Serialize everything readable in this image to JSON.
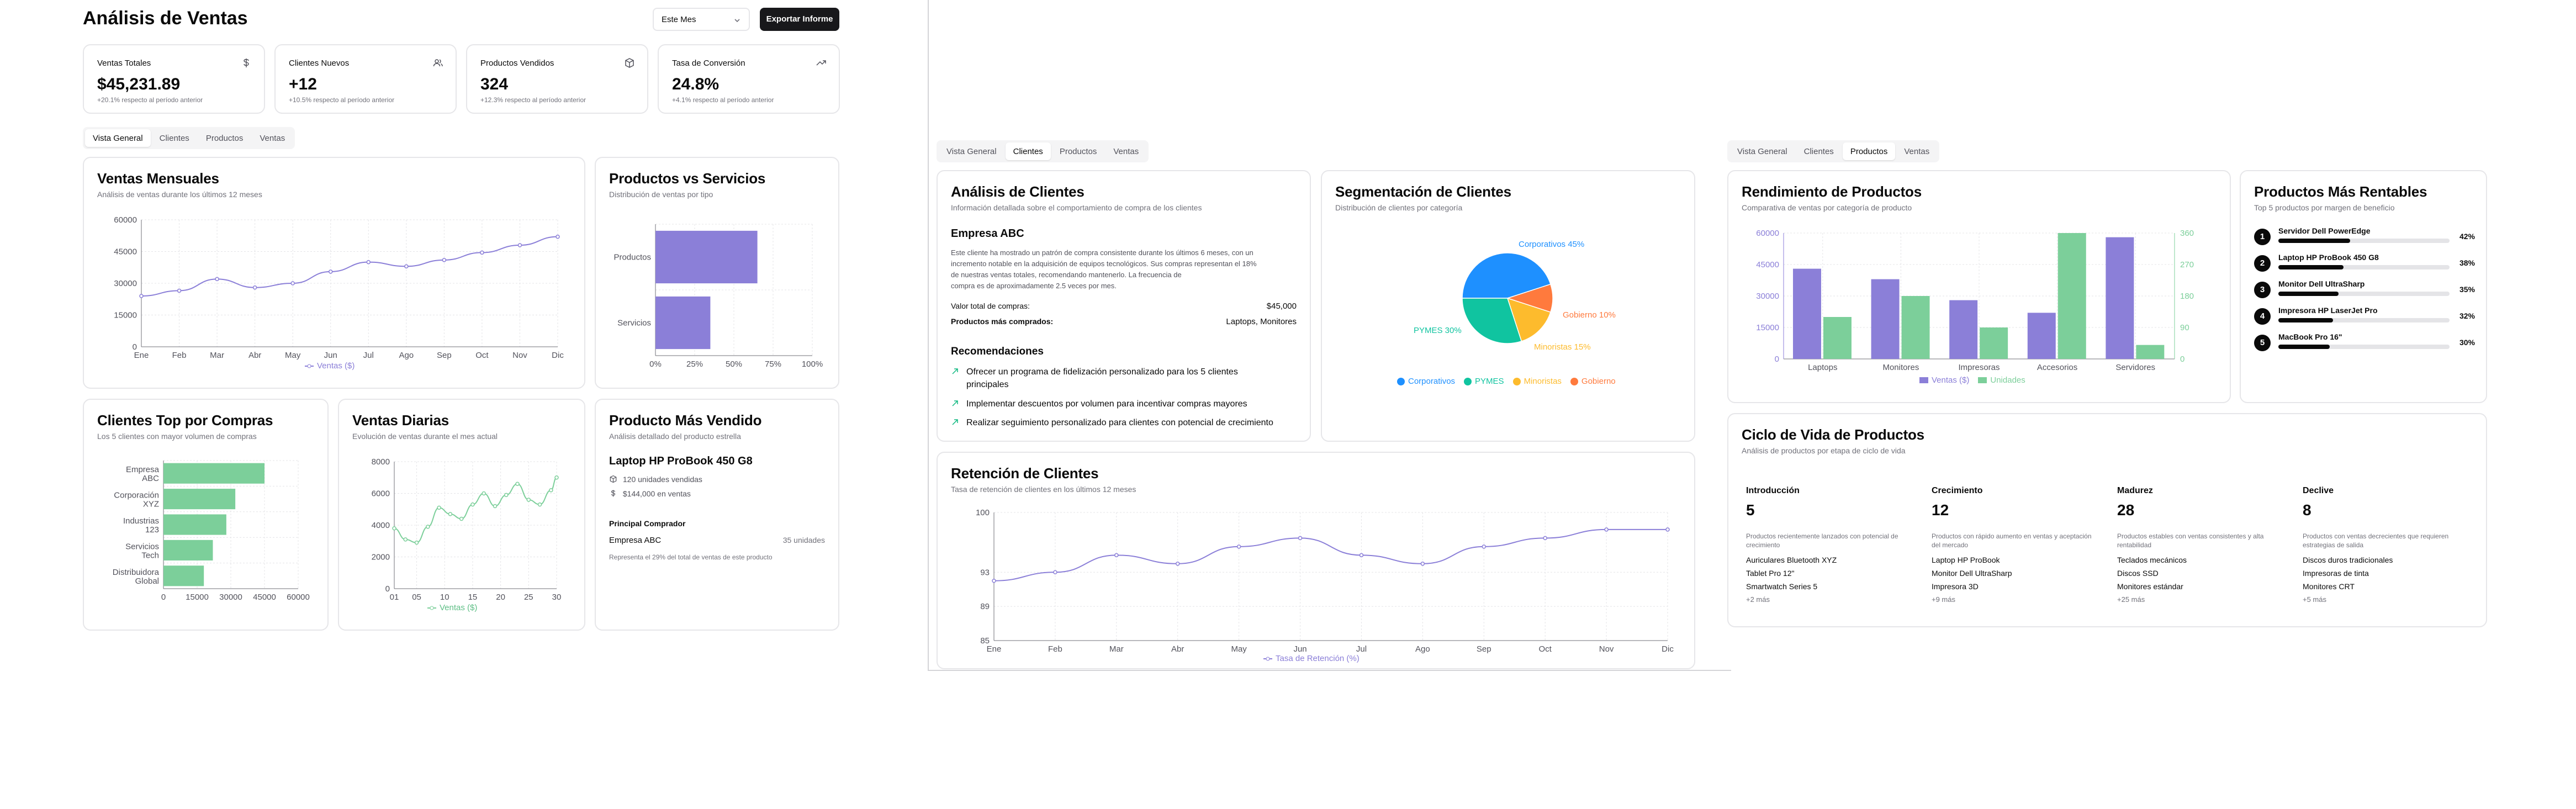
{
  "header": {
    "title": "Análisis de Ventas",
    "period": "Este Mes",
    "export": "Exportar Informe"
  },
  "kpis": [
    {
      "title": "Ventas Totales",
      "value": "$45,231.89",
      "note": "+20.1% respecto al período anterior",
      "icon": "dollar-icon"
    },
    {
      "title": "Clientes Nuevos",
      "value": "+12",
      "note": "+10.5% respecto al período anterior",
      "icon": "users-icon"
    },
    {
      "title": "Productos Vendidos",
      "value": "324",
      "note": "+12.3% respecto al período anterior",
      "icon": "package-icon"
    },
    {
      "title": "Tasa de Conversión",
      "value": "24.8%",
      "note": "+4.1% respecto al período anterior",
      "icon": "trending-up-icon"
    }
  ],
  "tabs": [
    "Vista General",
    "Clientes",
    "Productos",
    "Ventas"
  ],
  "monthly": {
    "title": "Ventas Mensuales",
    "subtitle": "Análisis de ventas durante los últimos 12 meses",
    "legend": "Ventas ($)",
    "chart_data": {
      "type": "line",
      "categories": [
        "Ene",
        "Feb",
        "Mar",
        "Abr",
        "May",
        "Jun",
        "Jul",
        "Ago",
        "Sep",
        "Oct",
        "Nov",
        "Dic"
      ],
      "values": [
        24000,
        26500,
        32000,
        28000,
        30000,
        35500,
        40000,
        38000,
        41000,
        44500,
        48000,
        52000
      ],
      "yticks": [
        "0",
        "15000",
        "30000",
        "45000",
        "60000"
      ],
      "ylim": [
        0,
        60000
      ]
    }
  },
  "pvs": {
    "title": "Productos vs Servicios",
    "subtitle": "Distribución de ventas por tipo",
    "chart_data": {
      "type": "bar",
      "orientation": "horizontal",
      "categories": [
        "Productos",
        "Servicios"
      ],
      "values": [
        65,
        35
      ],
      "xticks": [
        "0%",
        "25%",
        "50%",
        "75%",
        "100%"
      ],
      "xlim": [
        0,
        100
      ]
    }
  },
  "topclients": {
    "title": "Clientes Top por Compras",
    "subtitle": "Los 5 clientes con mayor volumen de compras",
    "chart_data": {
      "type": "bar",
      "orientation": "horizontal",
      "categories": [
        [
          "Empresa",
          "ABC"
        ],
        [
          "Corporación",
          "XYZ"
        ],
        [
          "Industrias",
          "123"
        ],
        [
          "Servicios",
          "Tech"
        ],
        [
          "Distribuidora",
          "Global"
        ]
      ],
      "values": [
        45000,
        32000,
        28000,
        22000,
        18000
      ],
      "xticks": [
        "0",
        "15000",
        "30000",
        "45000",
        "60000"
      ],
      "xlim": [
        0,
        60000
      ]
    }
  },
  "daily": {
    "title": "Ventas Diarias",
    "subtitle": "Evolución de ventas durante el mes actual",
    "legend": "Ventas ($)",
    "chart_data": {
      "type": "line",
      "x": [
        1,
        3,
        5,
        7,
        9,
        11,
        13,
        15,
        17,
        19,
        21,
        23,
        25,
        27,
        29,
        30
      ],
      "values": [
        3800,
        3100,
        2900,
        3900,
        5100,
        4700,
        4400,
        5300,
        6000,
        5200,
        5900,
        6600,
        5600,
        5300,
        6200,
        7000
      ],
      "xticks": [
        "01",
        "05",
        "10",
        "15",
        "20",
        "25",
        "30"
      ],
      "yticks": [
        "0",
        "2000",
        "4000",
        "6000",
        "8000"
      ],
      "ylim": [
        0,
        8000
      ]
    }
  },
  "topproduct": {
    "title": "Producto Más Vendido",
    "subtitle": "Análisis detallado del producto estrella",
    "name": "Laptop HP ProBook 450 G8",
    "units": "120 unidades vendidas",
    "revenue": "$144,000 en ventas",
    "buyer_label": "Principal Comprador",
    "buyer": "Empresa ABC",
    "buyer_units": "35 unidades",
    "buyer_note": "Representa el 29% del total de ventas de este producto"
  },
  "clientes": {
    "tabs": [
      "Vista General",
      "Clientes",
      "Productos",
      "Ventas"
    ],
    "analysis": {
      "title": "Análisis de Clientes",
      "subtitle": "Información detallada sobre el comportamiento de compra de los clientes",
      "client": "Empresa ABC",
      "paragraph": [
        "Este cliente ha mostrado un patrón de compra consistente durante los últimos 6 meses, con un",
        "incremento notable en la adquisición de equipos tecnológicos. Sus compras representan el 18%",
        "de nuestras ventas totales, recomendando mantenerlo. La frecuencia de",
        "compra es de aproximadamente 2.5 veces por mes."
      ],
      "total_label": "Valor total de compras:",
      "total_value": "$45,000",
      "products_label": "Productos más comprados:",
      "products_value": "Laptops, Monitores",
      "rec_title": "Recomendaciones",
      "recs": [
        [
          "Ofrecer un programa de fidelización personalizado para los 5 clientes",
          "principales"
        ],
        [
          "Implementar descuentos por volumen para incentivar compras mayores"
        ],
        [
          "Realizar seguimiento personalizado para clientes con potencial de crecimiento"
        ]
      ]
    },
    "segment": {
      "title": "Segmentación de Clientes",
      "subtitle": "Distribución de clientes por categoría",
      "labels": [
        "Corporativos 45%",
        "Gobierno 10%",
        "Minoristas 15%",
        "PYMES 30%"
      ],
      "chart_data": {
        "type": "pie",
        "categories": [
          "Corporativos",
          "PYMES",
          "Minoristas",
          "Gobierno"
        ],
        "values": [
          45,
          30,
          15,
          10
        ]
      },
      "colors": {
        "Corporativos": "#1e90ff",
        "PYMES": "#10c4a0",
        "Minoristas": "#fdbb2d",
        "Gobierno": "#ff7a3d"
      }
    },
    "retention": {
      "title": "Retención de Clientes",
      "subtitle": "Tasa de retención de clientes en los últimos 12 meses",
      "legend": "Tasa de Retención (%)",
      "chart_data": {
        "type": "line",
        "categories": [
          "Ene",
          "Feb",
          "Mar",
          "Abr",
          "May",
          "Jun",
          "Jul",
          "Ago",
          "Sep",
          "Oct",
          "Nov",
          "Dic"
        ],
        "values": [
          92,
          93,
          95,
          94,
          96,
          97,
          95,
          94,
          96,
          97,
          98,
          98
        ],
        "yticks": [
          "85",
          "89",
          "93",
          "100"
        ],
        "ylim": [
          85,
          100
        ]
      }
    }
  },
  "productos": {
    "tabs": [
      "Vista General",
      "Clientes",
      "Productos",
      "Ventas"
    ],
    "performance": {
      "title": "Rendimiento de Productos",
      "subtitle": "Comparativa de ventas por categoría de producto",
      "legend": [
        "Ventas ($)",
        "Unidades"
      ],
      "chart_data": {
        "type": "bar",
        "categories": [
          "Laptops",
          "Monitores",
          "Impresoras",
          "Accesorios",
          "Servidores"
        ],
        "series": [
          {
            "name": "Ventas ($)",
            "values": [
              43000,
              38000,
              28000,
              22000,
              58000
            ]
          },
          {
            "name": "Unidades",
            "values": [
              120,
              180,
              90,
              360,
              40
            ]
          }
        ],
        "yticks_left": [
          "0",
          "15000",
          "30000",
          "45000",
          "60000"
        ],
        "yticks_right": [
          "0",
          "90",
          "180",
          "270",
          "360"
        ],
        "ylim_left": [
          0,
          60000
        ],
        "ylim_right": [
          0,
          360
        ]
      }
    },
    "profitable": {
      "title": "Productos Más Rentables",
      "subtitle": "Top 5 productos por margen de beneficio",
      "items": [
        {
          "rank": "1",
          "name": "Servidor Dell PowerEdge",
          "pct": "42%",
          "value": 0.42
        },
        {
          "rank": "2",
          "name": "Laptop HP ProBook 450 G8",
          "pct": "38%",
          "value": 0.38
        },
        {
          "rank": "3",
          "name": "Monitor Dell UltraSharp",
          "pct": "35%",
          "value": 0.35
        },
        {
          "rank": "4",
          "name": "Impresora HP LaserJet Pro",
          "pct": "32%",
          "value": 0.32
        },
        {
          "rank": "5",
          "name": "MacBook Pro 16\"",
          "pct": "30%",
          "value": 0.3
        }
      ]
    },
    "lifecycle": {
      "title": "Ciclo de Vida de Productos",
      "subtitle": "Análisis de productos por etapa de ciclo de vida",
      "stages": [
        {
          "name": "Introducción",
          "count": "5",
          "desc": [
            "Productos recientemente lanzados con potencial de",
            "crecimiento"
          ],
          "items": [
            "Auriculares Bluetooth XYZ",
            "Tablet Pro 12\"",
            "Smartwatch Series 5"
          ],
          "more": "+2 más"
        },
        {
          "name": "Crecimiento",
          "count": "12",
          "desc": [
            "Productos con rápido aumento en ventas y aceptación",
            "del mercado"
          ],
          "items": [
            "Laptop HP ProBook",
            "Monitor Dell UltraSharp",
            "Impresora 3D"
          ],
          "more": "+9 más"
        },
        {
          "name": "Madurez",
          "count": "28",
          "desc": [
            "Productos estables con ventas consistentes y alta",
            "rentabilidad"
          ],
          "items": [
            "Teclados mecánicos",
            "Discos SSD",
            "Monitores estándar"
          ],
          "more": "+25 más"
        },
        {
          "name": "Declive",
          "count": "8",
          "desc": [
            "Productos con ventas decrecientes que requieren",
            "estrategias de salida"
          ],
          "items": [
            "Discos duros tradicionales",
            "Impresoras de tinta",
            "Monitores CRT"
          ],
          "more": "+5 más"
        }
      ]
    }
  }
}
